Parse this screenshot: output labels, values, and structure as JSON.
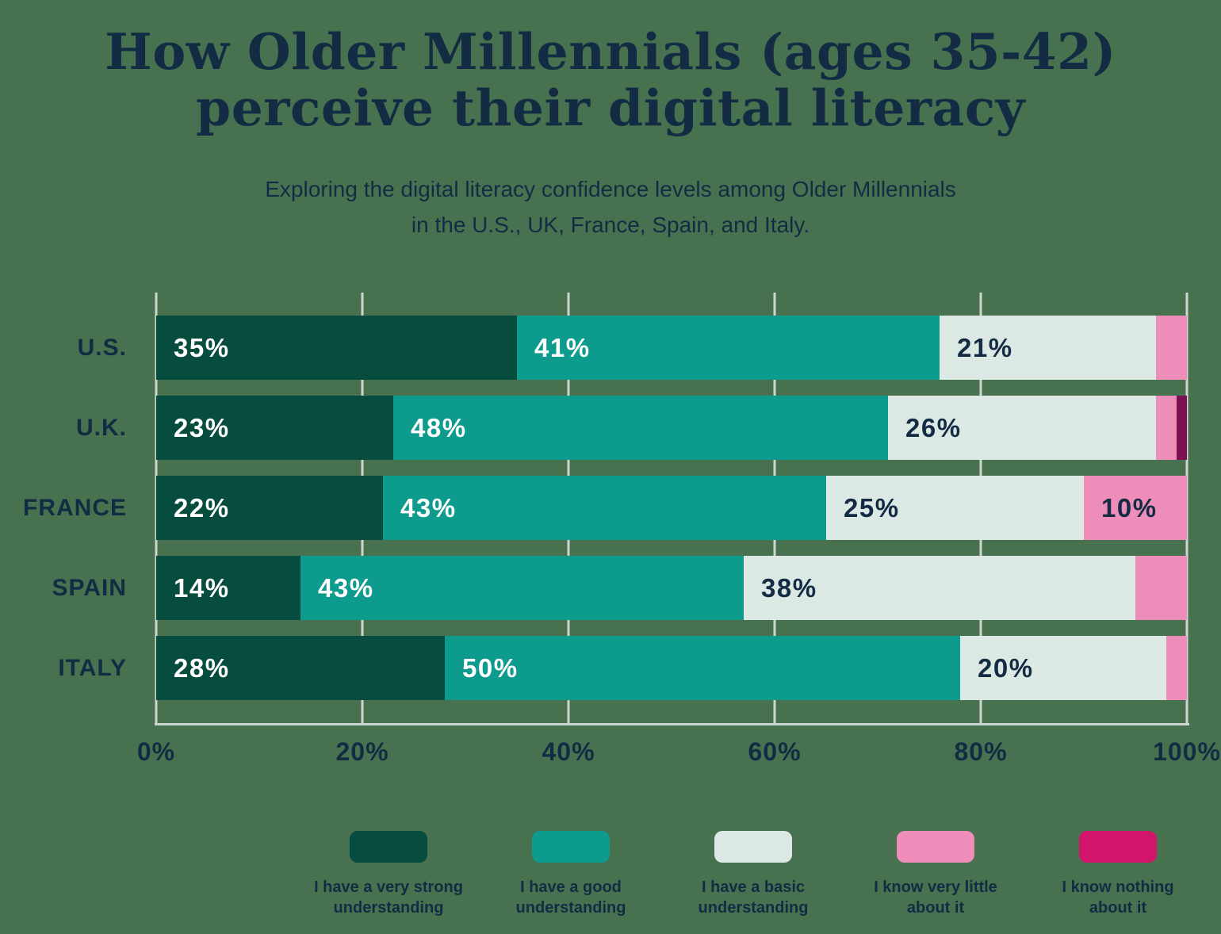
{
  "page": {
    "background_color": "#48724f",
    "text_color": "#132c44",
    "title_line1": "How Older Millennials (ages 35-42)",
    "title_line2": "perceive their digital literacy",
    "subtitle_line1": "Exploring the digital literacy confidence levels among Older Millennials",
    "subtitle_line2": "in the U.S., UK, France, Spain, and Italy."
  },
  "chart_data": {
    "type": "bar",
    "variant": "horizontal-stacked-percent",
    "title": "How Older Millennials (ages 35-42) perceive their digital literacy",
    "categories": [
      "U.S.",
      "U.K.",
      "FRANCE",
      "SPAIN",
      "ITALY"
    ],
    "series": [
      {
        "name": "I have a very strong understanding",
        "label_lines": [
          "I have a very strong",
          "understanding"
        ],
        "color": "#064c3f",
        "label_color": "#ffffff",
        "values": [
          35,
          23,
          22,
          14,
          28
        ]
      },
      {
        "name": "I have a good understanding",
        "label_lines": [
          "I have a good",
          "understanding"
        ],
        "color": "#0c9b8c",
        "label_color": "#ffffff",
        "values": [
          41,
          48,
          43,
          43,
          50
        ]
      },
      {
        "name": "I have a basic understanding",
        "label_lines": [
          "I have a basic",
          "understanding"
        ],
        "color": "#dce8e4",
        "label_color": "#132c44",
        "values": [
          21,
          26,
          25,
          38,
          20
        ]
      },
      {
        "name": "I know very little about it",
        "label_lines": [
          "I know very little",
          "about it"
        ],
        "color": "#ee8dba",
        "label_color": "#132c44",
        "values": [
          3,
          2,
          10,
          5,
          2
        ]
      },
      {
        "name": "I know nothing about it",
        "label_lines": [
          "I know nothing",
          "about it"
        ],
        "color": "#d0156a",
        "bar_color": "#7c1053",
        "label_color": "#ffffff",
        "values": [
          0,
          1,
          0,
          0,
          0
        ]
      }
    ],
    "x_tick_labels": [
      "0%",
      "20%",
      "40%",
      "60%",
      "80%",
      "100%"
    ],
    "xlim": [
      0,
      100
    ],
    "value_suffix": "%",
    "min_label_value": 10,
    "grid": true,
    "gridline_color": "#ccd7d1",
    "legend_position": "bottom"
  }
}
